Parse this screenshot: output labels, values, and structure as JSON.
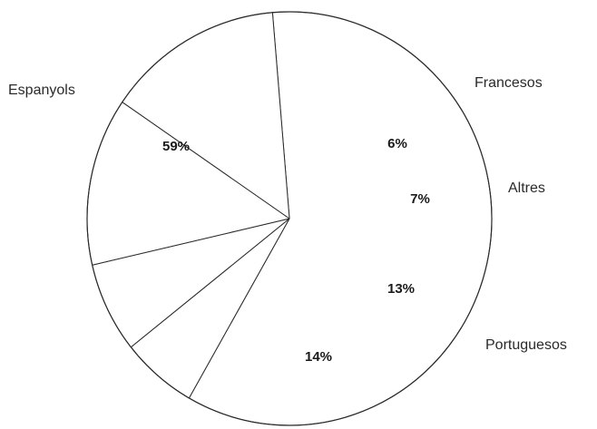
{
  "chart_data": {
    "type": "pie",
    "slices": [
      {
        "label": "Espanyols",
        "value": 59,
        "display": "59%"
      },
      {
        "label": "Francesos",
        "value": 6,
        "display": "6%"
      },
      {
        "label": "Altres",
        "value": 7,
        "display": "7%"
      },
      {
        "label": "Portuguesos",
        "value": 13,
        "display": "13%"
      },
      {
        "label": "",
        "value": 14,
        "display": "14%"
      }
    ],
    "colors": {
      "fill": "#ffffff",
      "stroke": "#2b2b2b",
      "text": "#1a1a1a"
    }
  }
}
